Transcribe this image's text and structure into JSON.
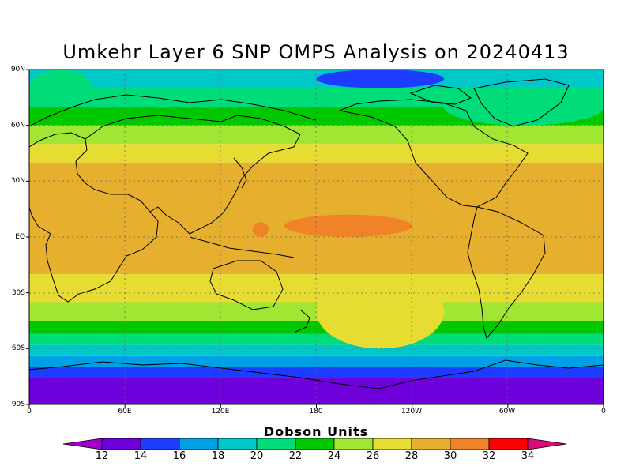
{
  "title": "Umkehr Layer 6 SNP OMPS Analysis on 20240413",
  "colorbar": {
    "title": "Dobson Units",
    "ticks": [
      "12",
      "14",
      "16",
      "18",
      "20",
      "22",
      "24",
      "26",
      "28",
      "30",
      "32",
      "34"
    ],
    "colors": [
      "#a000c8",
      "#6e00dc",
      "#1e3cff",
      "#00a0e6",
      "#00c8c8",
      "#00dc78",
      "#00c800",
      "#a0e632",
      "#e6dc32",
      "#e6af2d",
      "#f08228",
      "#fa0000",
      "#dc0a78"
    ]
  },
  "axes": {
    "y_ticks": [
      "90N",
      "60N",
      "30N",
      "EQ",
      "30S",
      "60S",
      "90S"
    ],
    "x_ticks": [
      "0",
      "60E",
      "120E",
      "180",
      "120W",
      "60W",
      "0"
    ]
  },
  "chart_data": {
    "type": "heatmap",
    "title": "Umkehr Layer 6 SNP OMPS Analysis on 20240413",
    "units": "Dobson Units",
    "xlim": [
      0,
      360
    ],
    "ylim": [
      -90,
      90
    ],
    "colorbar_range": [
      12,
      34
    ],
    "zonal_bands": [
      {
        "lat_range": [
          80,
          90
        ],
        "value": 18
      },
      {
        "lat_range": [
          70,
          80
        ],
        "value": 20
      },
      {
        "lat_range": [
          60,
          70
        ],
        "value": 23
      },
      {
        "lat_range": [
          50,
          60
        ],
        "value": 25
      },
      {
        "lat_range": [
          40,
          50
        ],
        "value": 27
      },
      {
        "lat_range": [
          -20,
          40
        ],
        "value": 29
      },
      {
        "lat_range": [
          -35,
          -20
        ],
        "value": 27
      },
      {
        "lat_range": [
          -45,
          -35
        ],
        "value": 25
      },
      {
        "lat_range": [
          -52,
          -45
        ],
        "value": 23
      },
      {
        "lat_range": [
          -58,
          -52
        ],
        "value": 21
      },
      {
        "lat_range": [
          -64,
          -58
        ],
        "value": 19
      },
      {
        "lat_range": [
          -70,
          -64
        ],
        "value": 17
      },
      {
        "lat_range": [
          -76,
          -70
        ],
        "value": 15
      },
      {
        "lat_range": [
          -90,
          -76
        ],
        "value": 13
      }
    ],
    "features": [
      {
        "lon_range": [
          180,
          260
        ],
        "lat_range": [
          -60,
          -20
        ],
        "value": 27
      },
      {
        "lon_range": [
          140,
          150
        ],
        "lat_range": [
          0,
          8
        ],
        "value": 31
      },
      {
        "lon_range": [
          160,
          240
        ],
        "lat_range": [
          0,
          12
        ],
        "value": 31
      },
      {
        "lon_range": [
          180,
          260
        ],
        "lat_range": [
          80,
          90
        ],
        "value": 15
      },
      {
        "lon_range": [
          260,
          360
        ],
        "lat_range": [
          60,
          80
        ],
        "value": 21
      },
      {
        "lon_range": [
          0,
          40
        ],
        "lat_range": [
          70,
          90
        ],
        "value": 21
      }
    ]
  }
}
